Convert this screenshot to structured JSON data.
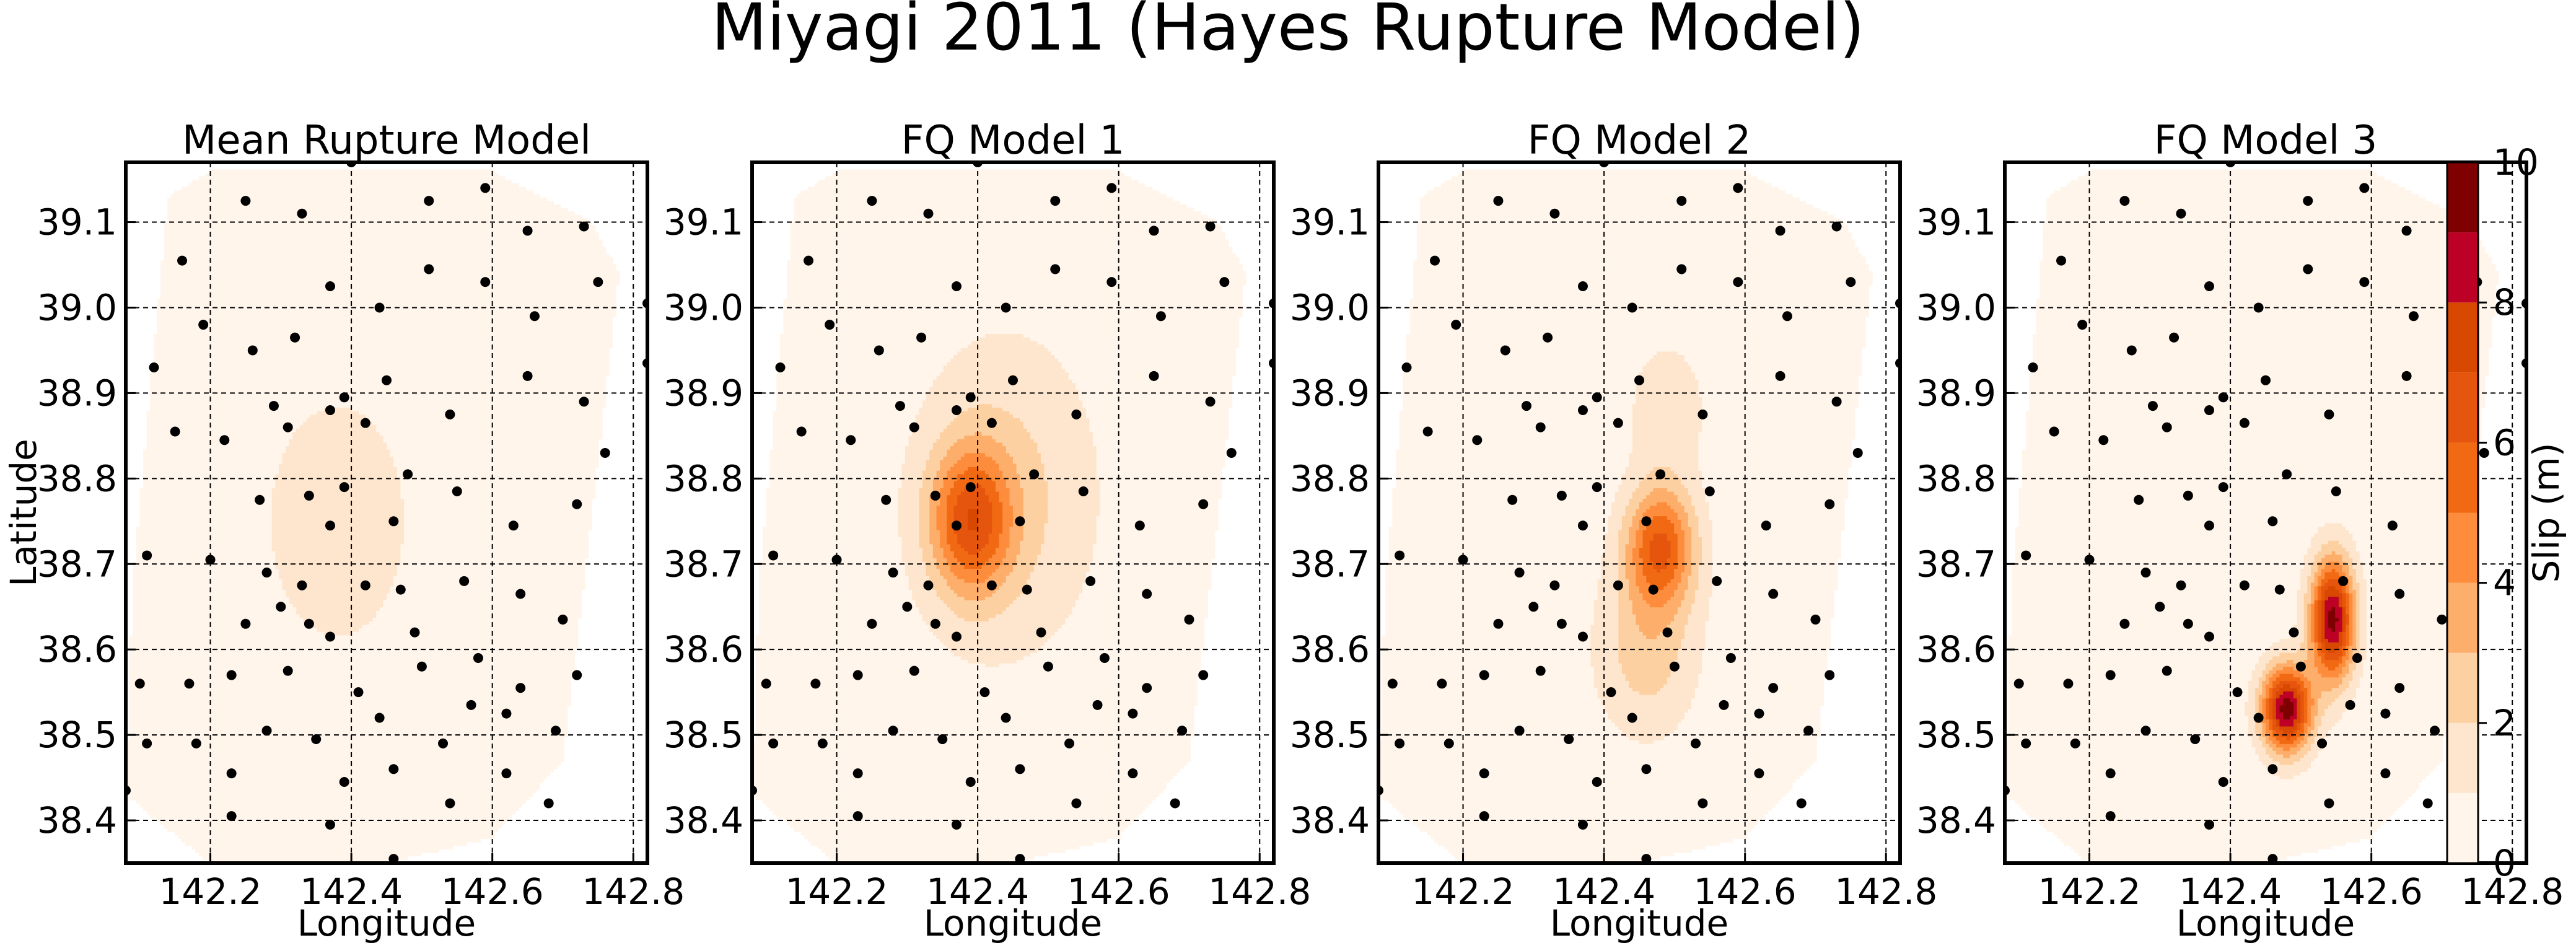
{
  "figure": {
    "title": "Miyagi 2011 (Hayes Rupture Model)"
  },
  "colorbar": {
    "label": "Slip (m)",
    "ticks": [
      0,
      2,
      4,
      6,
      8,
      10
    ],
    "range": [
      0,
      10
    ],
    "levels": [
      0,
      1,
      2,
      3,
      4,
      5,
      6,
      7,
      8,
      9,
      10
    ],
    "colors": [
      "#fff5eb",
      "#fee6ce",
      "#fdd0a2",
      "#fdae6b",
      "#fd8d3c",
      "#f16913",
      "#e6550d",
      "#d94801",
      "#bd0026",
      "#7f0000"
    ]
  },
  "chart_data": [
    {
      "type": "contour",
      "title": "Mean Rupture Model",
      "xlabel": "Longitude",
      "ylabel": "Latitude",
      "xlim": [
        142.08,
        142.82
      ],
      "ylim": [
        38.35,
        39.17
      ],
      "xticks": [
        "142.2",
        "142.4",
        "142.6",
        "142.8"
      ],
      "yticks": [
        "38.4",
        "38.5",
        "38.6",
        "38.7",
        "38.8",
        "38.9",
        "39.0",
        "39.1"
      ],
      "grid": true,
      "slip_sources": [
        {
          "lon": 142.38,
          "lat": 38.75,
          "peak_slip": 1.6,
          "sigma_lon": 0.07,
          "sigma_lat": 0.1
        }
      ]
    },
    {
      "type": "contour",
      "title": "FQ Model 1",
      "xlabel": "Longitude",
      "ylabel": "",
      "xlim": [
        142.08,
        142.82
      ],
      "ylim": [
        38.35,
        39.17
      ],
      "xticks": [
        "142.2",
        "142.4",
        "142.6",
        "142.8"
      ],
      "yticks": [
        "38.4",
        "38.5",
        "38.6",
        "38.7",
        "38.8",
        "38.9",
        "39.0",
        "39.1"
      ],
      "grid": true,
      "slip_sources": [
        {
          "lon": 142.39,
          "lat": 38.75,
          "peak_slip": 5.2,
          "sigma_lon": 0.04,
          "sigma_lat": 0.06
        },
        {
          "lon": 142.44,
          "lat": 38.78,
          "peak_slip": 1.9,
          "sigma_lon": 0.09,
          "sigma_lat": 0.13
        }
      ]
    },
    {
      "type": "contour",
      "title": "FQ Model 2",
      "xlabel": "Longitude",
      "ylabel": "",
      "xlim": [
        142.08,
        142.82
      ],
      "ylim": [
        38.35,
        39.17
      ],
      "xticks": [
        "142.2",
        "142.4",
        "142.6",
        "142.8"
      ],
      "yticks": [
        "38.4",
        "38.5",
        "38.6",
        "38.7",
        "38.8",
        "38.9",
        "39.0",
        "39.1"
      ],
      "grid": true,
      "slip_sources": [
        {
          "lon": 142.48,
          "lat": 38.72,
          "peak_slip": 5.6,
          "sigma_lon": 0.035,
          "sigma_lat": 0.05
        },
        {
          "lon": 142.46,
          "lat": 38.6,
          "peak_slip": 2.2,
          "sigma_lon": 0.05,
          "sigma_lat": 0.07
        },
        {
          "lon": 142.49,
          "lat": 38.88,
          "peak_slip": 1.3,
          "sigma_lon": 0.04,
          "sigma_lat": 0.06
        }
      ]
    },
    {
      "type": "contour",
      "title": "FQ Model 3",
      "xlabel": "Longitude",
      "ylabel": "",
      "xlim": [
        142.08,
        142.82
      ],
      "ylim": [
        38.35,
        39.17
      ],
      "xticks": [
        "142.2",
        "142.4",
        "142.6",
        "142.8"
      ],
      "yticks": [
        "38.4",
        "38.5",
        "38.6",
        "38.7",
        "38.8",
        "38.9",
        "39.0",
        "39.1"
      ],
      "grid": true,
      "slip_sources": [
        {
          "lon": 142.545,
          "lat": 38.635,
          "peak_slip": 9.0,
          "sigma_lon": 0.022,
          "sigma_lat": 0.05
        },
        {
          "lon": 142.48,
          "lat": 38.53,
          "peak_slip": 9.2,
          "sigma_lon": 0.025,
          "sigma_lat": 0.035
        }
      ]
    }
  ],
  "fault_outline": [
    [
      142.14,
      39.13
    ],
    [
      142.2,
      39.16
    ],
    [
      142.6,
      39.16
    ],
    [
      142.74,
      39.1
    ],
    [
      142.78,
      39.04
    ],
    [
      142.74,
      38.75
    ],
    [
      142.7,
      38.47
    ],
    [
      142.6,
      38.38
    ],
    [
      142.45,
      38.35
    ],
    [
      142.2,
      38.35
    ],
    [
      142.08,
      38.43
    ],
    [
      142.09,
      38.68
    ]
  ],
  "subfault_centers": [
    [
      142.25,
      39.125
    ],
    [
      142.33,
      39.11
    ],
    [
      142.4,
      39.17
    ],
    [
      142.51,
      39.125
    ],
    [
      142.59,
      39.14
    ],
    [
      142.65,
      39.09
    ],
    [
      142.73,
      39.095
    ],
    [
      142.16,
      39.055
    ],
    [
      142.37,
      39.025
    ],
    [
      142.44,
      39.0
    ],
    [
      142.51,
      39.045
    ],
    [
      142.59,
      39.03
    ],
    [
      142.66,
      38.99
    ],
    [
      142.75,
      39.03
    ],
    [
      142.19,
      38.98
    ],
    [
      142.26,
      38.95
    ],
    [
      142.32,
      38.965
    ],
    [
      142.12,
      38.93
    ],
    [
      142.29,
      38.885
    ],
    [
      142.37,
      38.88
    ],
    [
      142.45,
      38.915
    ],
    [
      142.54,
      38.875
    ],
    [
      142.65,
      38.92
    ],
    [
      142.73,
      38.89
    ],
    [
      142.15,
      38.855
    ],
    [
      142.22,
      38.845
    ],
    [
      142.31,
      38.86
    ],
    [
      142.39,
      38.895
    ],
    [
      142.42,
      38.865
    ],
    [
      142.27,
      38.775
    ],
    [
      142.34,
      38.78
    ],
    [
      142.39,
      38.79
    ],
    [
      142.48,
      38.805
    ],
    [
      142.55,
      38.785
    ],
    [
      142.76,
      38.83
    ],
    [
      142.37,
      38.745
    ],
    [
      142.46,
      38.75
    ],
    [
      142.63,
      38.745
    ],
    [
      142.72,
      38.77
    ],
    [
      142.11,
      38.71
    ],
    [
      142.2,
      38.705
    ],
    [
      142.28,
      38.69
    ],
    [
      142.33,
      38.675
    ],
    [
      142.42,
      38.675
    ],
    [
      142.47,
      38.67
    ],
    [
      142.56,
      38.68
    ],
    [
      142.64,
      38.665
    ],
    [
      142.25,
      38.63
    ],
    [
      142.3,
      38.65
    ],
    [
      142.34,
      38.63
    ],
    [
      142.37,
      38.615
    ],
    [
      142.49,
      38.62
    ],
    [
      142.58,
      38.59
    ],
    [
      142.7,
      38.635
    ],
    [
      142.1,
      38.56
    ],
    [
      142.17,
      38.56
    ],
    [
      142.23,
      38.57
    ],
    [
      142.31,
      38.575
    ],
    [
      142.41,
      38.55
    ],
    [
      142.5,
      38.58
    ],
    [
      142.57,
      38.535
    ],
    [
      142.64,
      38.555
    ],
    [
      142.72,
      38.57
    ],
    [
      142.11,
      38.49
    ],
    [
      142.18,
      38.49
    ],
    [
      142.28,
      38.505
    ],
    [
      142.35,
      38.495
    ],
    [
      142.44,
      38.52
    ],
    [
      142.53,
      38.49
    ],
    [
      142.62,
      38.525
    ],
    [
      142.69,
      38.505
    ],
    [
      142.23,
      38.455
    ],
    [
      142.39,
      38.445
    ],
    [
      142.46,
      38.46
    ],
    [
      142.54,
      38.42
    ],
    [
      142.62,
      38.455
    ],
    [
      142.68,
      38.42
    ],
    [
      142.08,
      38.435
    ],
    [
      142.23,
      38.405
    ],
    [
      142.37,
      38.395
    ],
    [
      142.46,
      38.355
    ],
    [
      142.82,
      38.935
    ],
    [
      142.82,
      39.005
    ]
  ]
}
